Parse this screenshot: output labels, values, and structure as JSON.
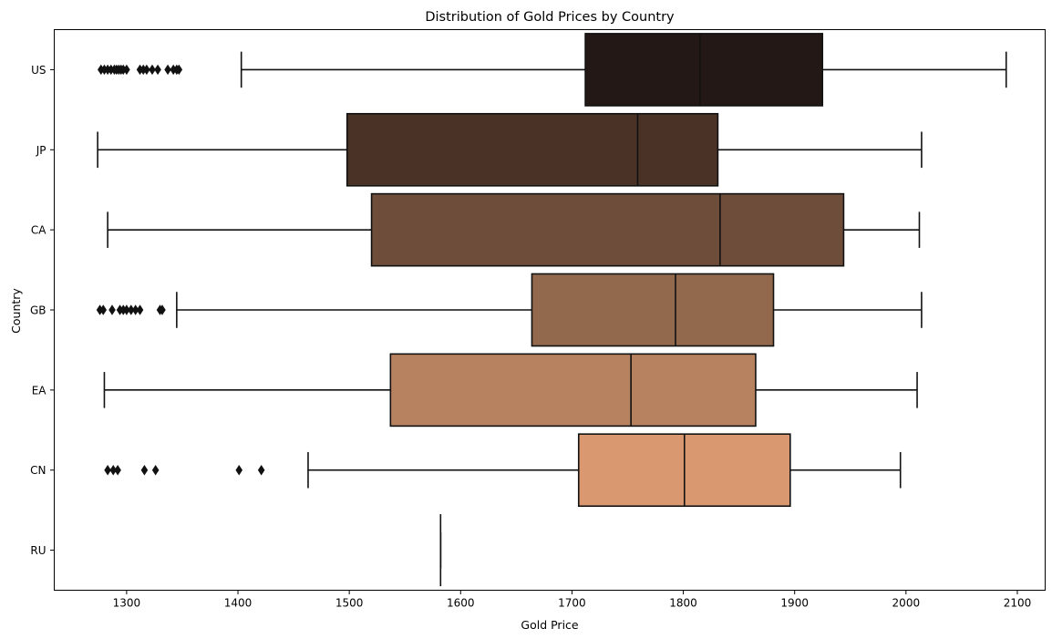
{
  "chart_data": {
    "type": "box",
    "orientation": "horizontal",
    "title": "Distribution of Gold Prices by Country",
    "xlabel": "Gold Price",
    "ylabel": "Country",
    "xlim": [
      1235,
      2125
    ],
    "xticks": [
      1300,
      1400,
      1500,
      1600,
      1700,
      1800,
      1900,
      2000,
      2100
    ],
    "grid": false,
    "legend": "none",
    "categories": [
      "US",
      "JP",
      "CA",
      "GB",
      "EA",
      "CN",
      "RU"
    ],
    "boxes": [
      {
        "category": "US",
        "whisker_low": 1403,
        "q1": 1712,
        "median": 1815,
        "q3": 1925,
        "whisker_high": 2090,
        "color": "#231815",
        "outliers": [
          1277,
          1280,
          1283,
          1286,
          1289,
          1291,
          1293,
          1295,
          1297,
          1300,
          1312,
          1315,
          1318,
          1323,
          1328,
          1337,
          1342,
          1345,
          1347
        ]
      },
      {
        "category": "JP",
        "whisker_low": 1274,
        "q1": 1498,
        "median": 1759,
        "q3": 1831,
        "whisker_high": 2014,
        "color": "#4a3226",
        "outliers": []
      },
      {
        "category": "CA",
        "whisker_low": 1283,
        "q1": 1520,
        "median": 1833,
        "q3": 1944,
        "whisker_high": 2012,
        "color": "#6e4e3a",
        "outliers": []
      },
      {
        "category": "GB",
        "whisker_low": 1345,
        "q1": 1664,
        "median": 1793,
        "q3": 1881,
        "whisker_high": 2014,
        "color": "#93694d",
        "outliers": [
          1276,
          1279,
          1287,
          1294,
          1297,
          1300,
          1304,
          1308,
          1312,
          1330,
          1332
        ]
      },
      {
        "category": "EA",
        "whisker_low": 1280,
        "q1": 1537,
        "median": 1753,
        "q3": 1865,
        "whisker_high": 2010,
        "color": "#b7825f",
        "outliers": []
      },
      {
        "category": "CN",
        "whisker_low": 1463,
        "q1": 1706,
        "median": 1801,
        "q3": 1896,
        "whisker_high": 1995,
        "color": "#d99870",
        "outliers": [
          1283,
          1288,
          1292,
          1316,
          1326,
          1401,
          1421
        ]
      },
      {
        "category": "RU",
        "whisker_low": 1582,
        "q1": 1582,
        "median": 1582,
        "q3": 1582,
        "whisker_high": 1582,
        "color": "#f0b98a",
        "outliers": []
      }
    ]
  }
}
